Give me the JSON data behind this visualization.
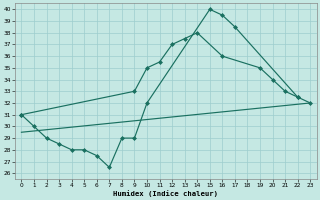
{
  "background_color": "#c5e8e3",
  "grid_color": "#9ecece",
  "line_color": "#1a7060",
  "xlabel": "Humidex (Indice chaleur)",
  "xlim": [
    -0.5,
    23.5
  ],
  "ylim": [
    25.5,
    40.5
  ],
  "xticks": [
    0,
    1,
    2,
    3,
    4,
    5,
    6,
    7,
    8,
    9,
    10,
    11,
    12,
    13,
    14,
    15,
    16,
    17,
    18,
    19,
    20,
    21,
    22,
    23
  ],
  "yticks": [
    26,
    27,
    28,
    29,
    30,
    31,
    32,
    33,
    34,
    35,
    36,
    37,
    38,
    39,
    40
  ],
  "series1_x": [
    0,
    1,
    2,
    3,
    4,
    5,
    6,
    7,
    8,
    9,
    10,
    15,
    16,
    17,
    22,
    23
  ],
  "series1_y": [
    31,
    30,
    29,
    28.5,
    28,
    28,
    27.5,
    26.5,
    29,
    29,
    32,
    40,
    39.5,
    38.5,
    32.5,
    32
  ],
  "series2_x": [
    0,
    9,
    10,
    11,
    12,
    13,
    14,
    16,
    19,
    20,
    21,
    22
  ],
  "series2_y": [
    31,
    33,
    35,
    35.5,
    37,
    37.5,
    38,
    36,
    35,
    34,
    33,
    32.5
  ],
  "series3_x": [
    0,
    23
  ],
  "series3_y": [
    29.5,
    32.0
  ]
}
